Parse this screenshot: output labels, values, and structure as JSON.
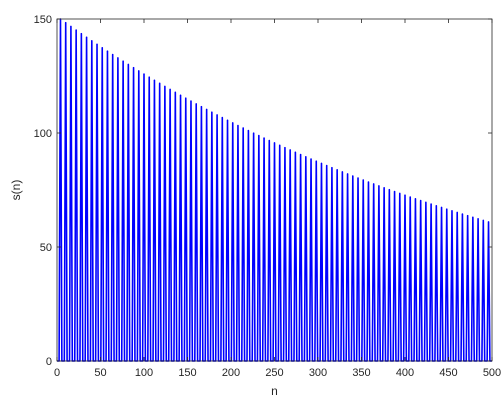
{
  "chart_data": {
    "type": "line",
    "title": "",
    "xlabel": "n",
    "ylabel": "s(n)",
    "xlim": [
      0,
      500
    ],
    "ylim": [
      0,
      150
    ],
    "xticks": [
      0,
      50,
      100,
      150,
      200,
      250,
      300,
      350,
      400,
      450,
      500
    ],
    "yticks": [
      0,
      50,
      100,
      150
    ],
    "grid": false,
    "legend": "none",
    "series": [
      {
        "color": "#0000ff",
        "description_of_pattern": "",
        "pulse_period": 6,
        "pulse_n": [
          4,
          10,
          16,
          22,
          28,
          34,
          40,
          46,
          52,
          58,
          64,
          70,
          76,
          82,
          88,
          94,
          100,
          106,
          112,
          118,
          124,
          130,
          136,
          142,
          148,
          154,
          160,
          166,
          172,
          178,
          184,
          190,
          196,
          202,
          208,
          214,
          220,
          226,
          232,
          238,
          244,
          250,
          256,
          262,
          268,
          274,
          280,
          286,
          292,
          298,
          304,
          310,
          316,
          322,
          328,
          334,
          340,
          346,
          352,
          358,
          364,
          370,
          376,
          382,
          388,
          394,
          400,
          406,
          412,
          418,
          424,
          430,
          436,
          442,
          448,
          454,
          460,
          466,
          472,
          478,
          484,
          490,
          496
        ],
        "peak_start": 150,
        "peak_end": 61
      }
    ]
  }
}
